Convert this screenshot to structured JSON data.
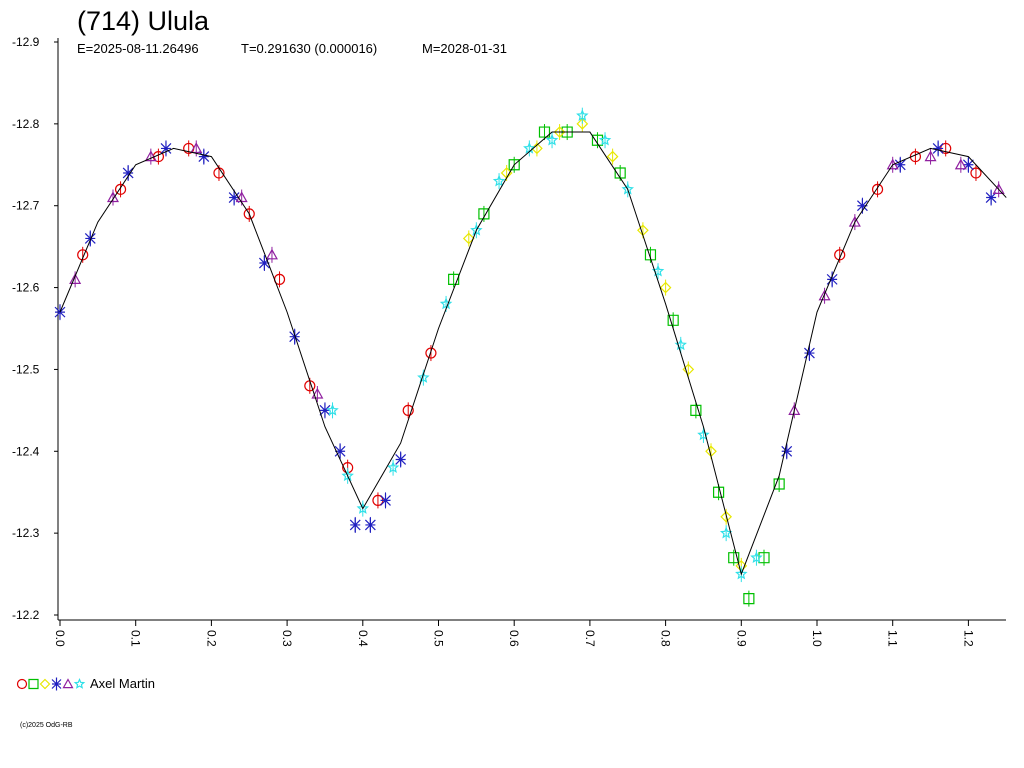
{
  "chart_data": {
    "type": "scatter",
    "title": "(714) Ulula",
    "subtitle": [
      "E=2025-08-11.26496",
      "T=0.291630 (0.000016)",
      "M=2028-01-31"
    ],
    "legend": "Axel Martin",
    "footer": "(c)2025 OdG-RB",
    "xlim": [
      0,
      1.25
    ],
    "ylim": [
      -12.2,
      -12.9
    ],
    "xticks": [
      {
        "value": 0,
        "label": "0.0"
      },
      0.1,
      0.2,
      0.3,
      0.4,
      0.5,
      0.6,
      0.7,
      0.8,
      0.9,
      {
        "value": 1,
        "label": "1.0"
      },
      1.1,
      1.2
    ],
    "yticks": [
      -12.2,
      -12.3,
      -12.4,
      -12.5,
      -12.6,
      -12.7,
      -12.8,
      -12.9
    ],
    "fit": {
      "color": "#000000",
      "x": [
        0,
        0.05,
        0.1,
        0.15,
        0.2,
        0.25,
        0.3,
        0.35,
        0.4,
        0.45,
        0.5,
        0.55,
        0.6,
        0.65,
        0.7,
        0.75,
        0.8,
        0.85,
        0.9,
        0.95,
        1,
        1.05,
        1.1,
        1.15,
        1.2,
        1.25
      ],
      "y": [
        -12.57,
        -12.68,
        -12.75,
        -12.77,
        -12.76,
        -12.69,
        -12.57,
        -12.43,
        -12.33,
        -12.41,
        -12.55,
        -12.67,
        -12.75,
        -12.79,
        -12.79,
        -12.72,
        -12.58,
        -12.43,
        -12.25,
        -12.37,
        -12.57,
        -12.68,
        -12.75,
        -12.77,
        -12.76,
        -12.71
      ]
    },
    "series": [
      {
        "color": "#e00000",
        "marker": "circle",
        "x": [
          0.03,
          0.08,
          0.13,
          0.17,
          0.21,
          0.25,
          0.29,
          0.33,
          0.38,
          0.42,
          0.46,
          0.49,
          1.03,
          1.08,
          1.13,
          1.17,
          1.21
        ],
        "values": [
          -12.64,
          -12.72,
          -12.76,
          -12.77,
          -12.74,
          -12.69,
          -12.61,
          -12.48,
          -12.38,
          -12.34,
          -12.45,
          -12.52,
          -12.64,
          -12.72,
          -12.76,
          -12.77,
          -12.74
        ]
      },
      {
        "color": "#00c000",
        "marker": "square",
        "x": [
          0.52,
          0.56,
          0.6,
          0.64,
          0.67,
          0.71,
          0.74,
          0.78,
          0.81,
          0.84,
          0.87,
          0.89,
          0.91,
          0.93,
          0.95
        ],
        "values": [
          -12.61,
          -12.69,
          -12.75,
          -12.79,
          -12.79,
          -12.78,
          -12.74,
          -12.64,
          -12.56,
          -12.45,
          -12.35,
          -12.27,
          -12.22,
          -12.27,
          -12.36
        ]
      },
      {
        "color": "#e8e800",
        "marker": "diamond",
        "x": [
          0.54,
          0.59,
          0.63,
          0.66,
          0.69,
          0.73,
          0.77,
          0.8,
          0.83,
          0.86,
          0.88,
          0.9
        ],
        "values": [
          -12.66,
          -12.74,
          -12.77,
          -12.79,
          -12.8,
          -12.76,
          -12.67,
          -12.6,
          -12.5,
          -12.4,
          -12.32,
          -12.26
        ]
      },
      {
        "color": "#2020c0",
        "marker": "cross",
        "x": [
          0,
          0.04,
          0.09,
          0.14,
          0.19,
          0.23,
          0.27,
          0.31,
          0.35,
          0.37,
          0.39,
          0.41,
          0.43,
          0.45,
          0.96,
          0.99,
          1.02,
          1.06,
          1.11,
          1.16,
          1.2,
          1.23
        ],
        "values": [
          -12.57,
          -12.66,
          -12.74,
          -12.77,
          -12.76,
          -12.71,
          -12.63,
          -12.54,
          -12.45,
          -12.4,
          -12.31,
          -12.31,
          -12.34,
          -12.39,
          -12.4,
          -12.52,
          -12.61,
          -12.7,
          -12.75,
          -12.77,
          -12.75,
          -12.71
        ]
      },
      {
        "color": "#9020a0",
        "marker": "triangle",
        "x": [
          0.02,
          0.07,
          0.12,
          0.18,
          0.24,
          0.28,
          0.34,
          0.97,
          1.01,
          1.05,
          1.1,
          1.15,
          1.19,
          1.24
        ],
        "values": [
          -12.61,
          -12.71,
          -12.76,
          -12.77,
          -12.71,
          -12.64,
          -12.47,
          -12.45,
          -12.59,
          -12.68,
          -12.75,
          -12.76,
          -12.75,
          -12.72
        ]
      },
      {
        "color": "#30e0e8",
        "marker": "star",
        "x": [
          0.36,
          0.38,
          0.4,
          0.44,
          0.48,
          0.51,
          0.55,
          0.58,
          0.62,
          0.65,
          0.69,
          0.72,
          0.75,
          0.79,
          0.82,
          0.85,
          0.88,
          0.9,
          0.92
        ],
        "values": [
          -12.45,
          -12.37,
          -12.33,
          -12.38,
          -12.49,
          -12.58,
          -12.67,
          -12.73,
          -12.77,
          -12.78,
          -12.81,
          -12.78,
          -12.72,
          -12.62,
          -12.53,
          -12.42,
          -12.3,
          -12.25,
          -12.27
        ]
      }
    ]
  }
}
